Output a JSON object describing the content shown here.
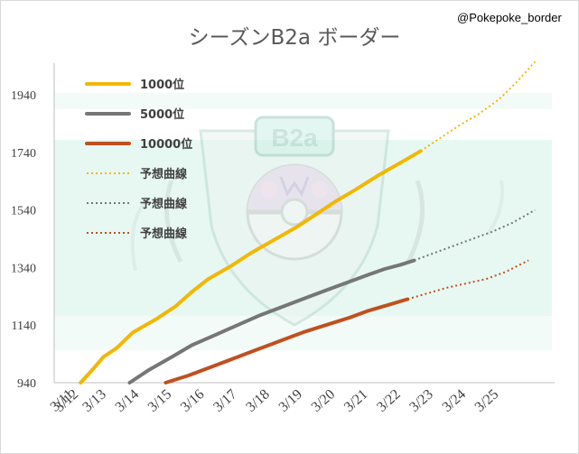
{
  "credit": "@Pokepoke_border",
  "colors": {
    "gold": "#F2B705",
    "gray": "#767676",
    "rust": "#C0501F",
    "axis": "#BFBFBF",
    "band": "#CFEFE6",
    "emblem": "#9FC9BE"
  },
  "icons": {
    "background_emblem": "master-ball-emblem"
  },
  "emblem_text": "B2a",
  "chart_data": {
    "type": "line",
    "title": "シーズンB2a ボーダー",
    "xlabel": "",
    "ylabel": "",
    "ylim": [
      940,
      2050
    ],
    "yticks": [
      940,
      1140,
      1340,
      1540,
      1740,
      1940
    ],
    "xlim": [
      0,
      14.2
    ],
    "xticks": [
      {
        "x": 0,
        "label": "3/11"
      },
      {
        "x": 0.15,
        "label": "3/12"
      },
      {
        "x": 1,
        "label": "3/13"
      },
      {
        "x": 2,
        "label": "3/14"
      },
      {
        "x": 3,
        "label": "3/15"
      },
      {
        "x": 4,
        "label": "3/16"
      },
      {
        "x": 5,
        "label": "3/17"
      },
      {
        "x": 6,
        "label": "3/18"
      },
      {
        "x": 7,
        "label": "3/19"
      },
      {
        "x": 8,
        "label": "3/20"
      },
      {
        "x": 9,
        "label": "3/21"
      },
      {
        "x": 10,
        "label": "3/22"
      },
      {
        "x": 11,
        "label": "3/23"
      },
      {
        "x": 12,
        "label": "3/24"
      },
      {
        "x": 13,
        "label": "3/25"
      }
    ],
    "grid": false,
    "legend_position": "top-left",
    "series": [
      {
        "name": "1000位",
        "color": "#F2B705",
        "style": "solid",
        "width": 4,
        "points": [
          [
            0.2,
            940
          ],
          [
            0.6,
            990
          ],
          [
            0.9,
            1030
          ],
          [
            1.3,
            1060
          ],
          [
            1.8,
            1115
          ],
          [
            2.5,
            1160
          ],
          [
            3.1,
            1205
          ],
          [
            3.6,
            1255
          ],
          [
            4.1,
            1300
          ],
          [
            4.8,
            1345
          ],
          [
            5.4,
            1390
          ],
          [
            6.1,
            1435
          ],
          [
            6.8,
            1480
          ],
          [
            7.4,
            1525
          ],
          [
            8.0,
            1570
          ],
          [
            8.6,
            1610
          ],
          [
            9.3,
            1660
          ],
          [
            10.0,
            1705
          ],
          [
            10.6,
            1745
          ]
        ]
      },
      {
        "name": "5000位",
        "color": "#767676",
        "style": "solid",
        "width": 4,
        "points": [
          [
            1.7,
            940
          ],
          [
            2.3,
            985
          ],
          [
            3.0,
            1030
          ],
          [
            3.6,
            1070
          ],
          [
            4.3,
            1105
          ],
          [
            5.0,
            1140
          ],
          [
            5.7,
            1175
          ],
          [
            6.4,
            1205
          ],
          [
            7.1,
            1235
          ],
          [
            7.8,
            1265
          ],
          [
            8.4,
            1290
          ],
          [
            9.0,
            1315
          ],
          [
            9.5,
            1335
          ],
          [
            10.0,
            1350
          ],
          [
            10.4,
            1365
          ]
        ]
      },
      {
        "name": "10000位",
        "color": "#C0501F",
        "style": "solid",
        "width": 4,
        "points": [
          [
            2.8,
            940
          ],
          [
            3.5,
            965
          ],
          [
            4.2,
            995
          ],
          [
            4.9,
            1025
          ],
          [
            5.6,
            1055
          ],
          [
            6.3,
            1085
          ],
          [
            7.0,
            1115
          ],
          [
            7.7,
            1140
          ],
          [
            8.4,
            1165
          ],
          [
            9.0,
            1190
          ],
          [
            9.6,
            1210
          ],
          [
            10.2,
            1230
          ]
        ]
      },
      {
        "name": "予想曲線",
        "color": "#F2B705",
        "style": "dotted",
        "width": 2,
        "points": [
          [
            10.6,
            1745
          ],
          [
            11.2,
            1790
          ],
          [
            11.8,
            1835
          ],
          [
            12.4,
            1875
          ],
          [
            13.0,
            1925
          ],
          [
            13.5,
            1980
          ],
          [
            14.1,
            2055
          ]
        ]
      },
      {
        "name": "予想曲線",
        "color": "#767676",
        "style": "dotted",
        "width": 2,
        "points": [
          [
            10.4,
            1365
          ],
          [
            11.0,
            1390
          ],
          [
            11.6,
            1415
          ],
          [
            12.2,
            1440
          ],
          [
            12.8,
            1465
          ],
          [
            13.4,
            1495
          ],
          [
            14.1,
            1540
          ]
        ]
      },
      {
        "name": "予想曲線",
        "color": "#C0501F",
        "style": "dotted",
        "width": 2,
        "points": [
          [
            10.2,
            1230
          ],
          [
            10.8,
            1250
          ],
          [
            11.4,
            1270
          ],
          [
            12.0,
            1285
          ],
          [
            12.6,
            1300
          ],
          [
            13.2,
            1325
          ],
          [
            13.9,
            1365
          ]
        ]
      }
    ]
  }
}
